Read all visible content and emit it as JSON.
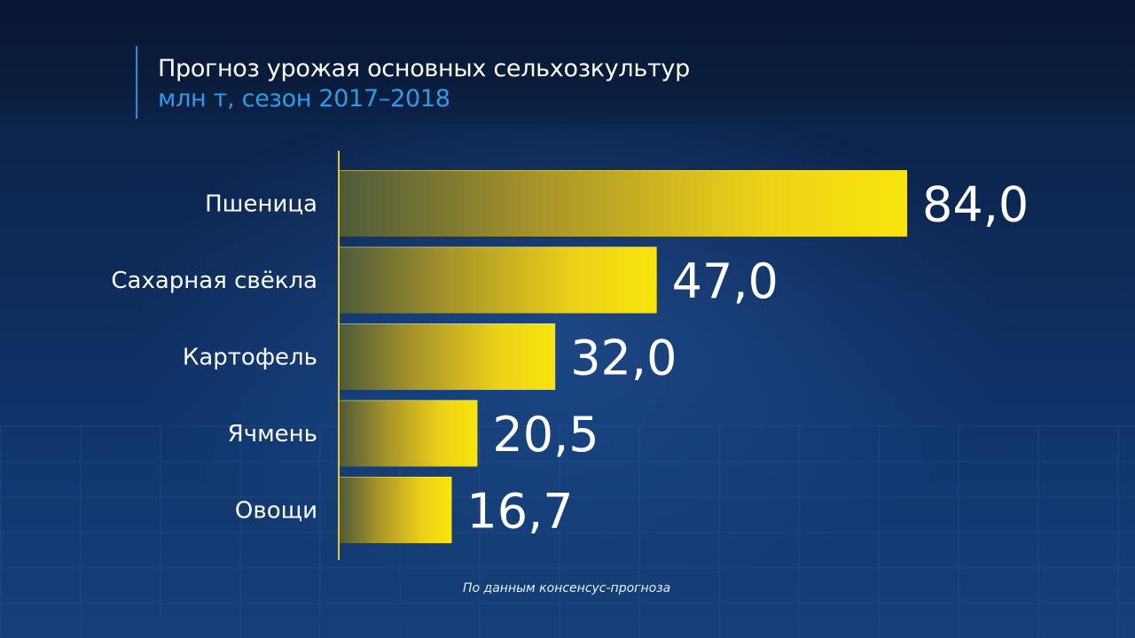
{
  "header": {
    "title": "Прогноз урожая основных сельхозкультур",
    "subtitle": "млн т, сезон 2017–2018"
  },
  "colors": {
    "bar_bright": "#f7df0f",
    "bar_dark": "#5a5a2a",
    "axis": "#e8c820",
    "subtitle": "#2f9be8",
    "text": "#ffffff"
  },
  "chart_data": {
    "type": "bar",
    "orientation": "horizontal",
    "title": "Прогноз урожая основных сельхозкультур",
    "subtitle": "млн т, сезон 2017–2018",
    "categories": [
      "Пшеница",
      "Сахарная свёкла",
      "Картофель",
      "Ячмень",
      "Овощи"
    ],
    "values": [
      84.0,
      47.0,
      32.0,
      20.5,
      16.7
    ],
    "value_labels": [
      "84,0",
      "47,0",
      "32,0",
      "20,5",
      "16,7"
    ],
    "xlim": [
      0,
      84.0
    ],
    "grid": false,
    "legend": "none"
  },
  "footnote": "По данным консенсус-прогноза"
}
